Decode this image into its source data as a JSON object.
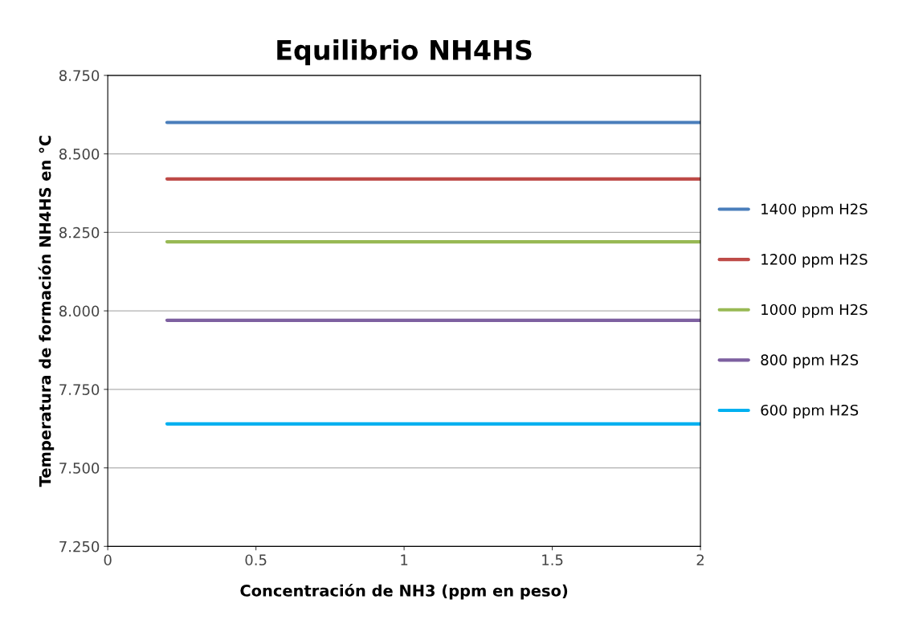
{
  "chart_data": {
    "type": "line",
    "title": "Equilibrio NH4HS",
    "xlabel": "Concentración de NH3 (ppm en peso)",
    "ylabel": "Temperatura de formación NH4HS en °C",
    "xlim": [
      0,
      2
    ],
    "xticks": [
      0,
      0.5,
      1,
      {
        "value": 1.5,
        "label": "1.5"
      },
      2
    ],
    "ylim": [
      7.25,
      8.75
    ],
    "yticks": [
      {
        "value": 7.25,
        "label": "7.250"
      },
      {
        "value": 7.5,
        "label": "7.500"
      },
      {
        "value": 7.75,
        "label": "7.750"
      },
      {
        "value": 8.0,
        "label": "8.000"
      },
      {
        "value": 8.25,
        "label": "8.250"
      },
      {
        "value": 8.5,
        "label": "8.500"
      },
      {
        "value": 8.75,
        "label": "8.750"
      }
    ],
    "grid": "y",
    "legend": "right",
    "marker": "none",
    "line_style": "solid",
    "x": [
      0.2,
      2
    ],
    "series": [
      {
        "name": "1400 ppm H2S",
        "color": "#4a7ebb",
        "values": [
          8.6,
          8.6
        ]
      },
      {
        "name": "1200 ppm H2S",
        "color": "#be4b48",
        "values": [
          8.42,
          8.42
        ]
      },
      {
        "name": "1000 ppm H2S",
        "color": "#98b954",
        "values": [
          8.22,
          8.22
        ]
      },
      {
        "name": "800 ppm H2S",
        "color": "#7d60a0",
        "values": [
          7.97,
          7.97
        ]
      },
      {
        "name": "600 ppm H2S",
        "color": "#00b0f0",
        "values": [
          7.64,
          7.64
        ]
      }
    ]
  }
}
